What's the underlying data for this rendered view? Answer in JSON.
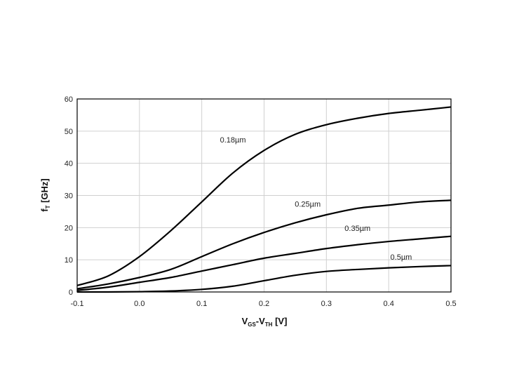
{
  "chart_data": {
    "type": "line",
    "title": "",
    "xlabel": {
      "main": "V",
      "sub1": "GS",
      "mid": "-V",
      "sub2": "TH",
      "tail": " [V]"
    },
    "ylabel": {
      "main": "f",
      "sub": "T",
      "tail": " [GHz]"
    },
    "xlim": [
      -0.1,
      0.5
    ],
    "ylim": [
      0,
      60
    ],
    "xticks": [
      "-0.1",
      "0.0",
      "0.1",
      "0.2",
      "0.3",
      "0.4",
      "0.5"
    ],
    "yticks": [
      "0",
      "10",
      "20",
      "30",
      "40",
      "50",
      "60"
    ],
    "grid": true,
    "legend": "inline labels",
    "x": [
      -0.1,
      -0.05,
      0.0,
      0.05,
      0.1,
      0.15,
      0.2,
      0.25,
      0.3,
      0.35,
      0.4,
      0.45,
      0.5
    ],
    "series": [
      {
        "name": "0.18µm",
        "values": [
          2,
          5,
          11,
          19,
          28,
          37,
          44,
          49,
          52,
          54,
          55.5,
          56.5,
          57.5
        ]
      },
      {
        "name": "0.25µm",
        "values": [
          1,
          2.5,
          4.5,
          7,
          11,
          15,
          18.5,
          21.5,
          24,
          26,
          27,
          28,
          28.5
        ]
      },
      {
        "name": "0.35µm",
        "values": [
          0.5,
          1.5,
          3,
          4.5,
          6.5,
          8.5,
          10.5,
          12,
          13.5,
          14.7,
          15.7,
          16.5,
          17.3
        ]
      },
      {
        "name": "0.5µm",
        "values": [
          0,
          0,
          0.1,
          0.3,
          0.8,
          1.8,
          3.5,
          5.2,
          6.4,
          7,
          7.5,
          7.9,
          8.2
        ]
      }
    ]
  }
}
